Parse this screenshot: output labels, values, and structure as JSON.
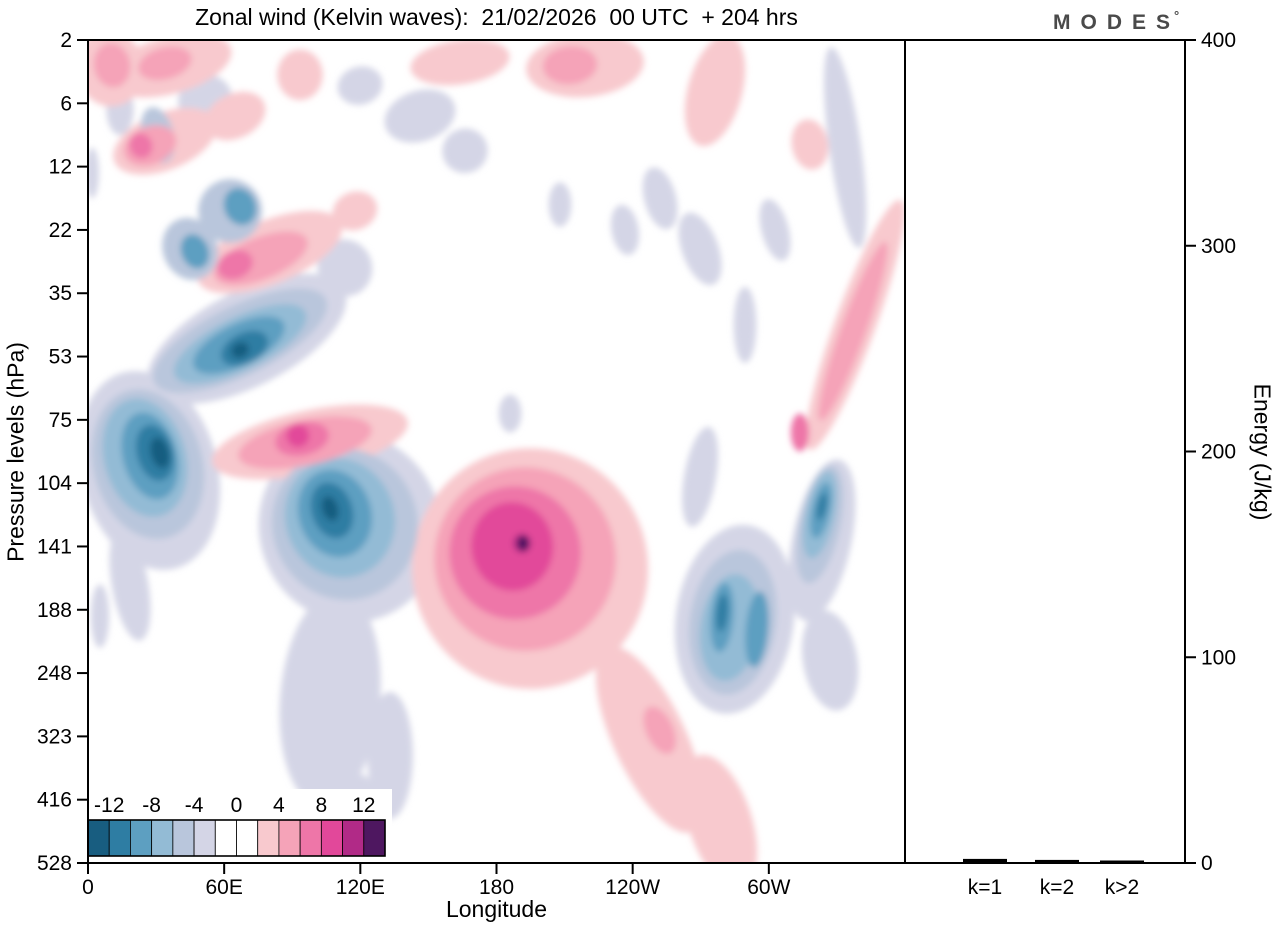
{
  "header": {
    "title": "Zonal wind (Kelvin waves):  21/02/2026  00 UTC  + 204 hrs",
    "logo_text": "MODES",
    "logo_degree": "°"
  },
  "chart_data": [
    {
      "type": "heatmap",
      "subtype": "filled-contour",
      "title": "Zonal wind (Kelvin waves):  21/02/2026  00 UTC  + 204 hrs",
      "xlabel": "Longitude",
      "ylabel": "Pressure levels (hPa)",
      "x_range": [
        0,
        360
      ],
      "x_ticks": {
        "lons": [
          0,
          60,
          120,
          180,
          240,
          300
        ],
        "labels": [
          "0",
          "60E",
          "120E",
          "180",
          "120W",
          "60W"
        ]
      },
      "y_ticks": [
        "2",
        "6",
        "12",
        "22",
        "35",
        "53",
        "75",
        "104",
        "141",
        "188",
        "248",
        "323",
        "416",
        "528"
      ],
      "grid": false,
      "colorbar": {
        "labels": [
          "-12",
          "-8",
          "-4",
          "0",
          "4",
          "8",
          "12"
        ],
        "levels_min": -14,
        "levels_max": 14,
        "levels_step": 2,
        "colors": [
          "#185d80",
          "#2e7da3",
          "#5d9fc1",
          "#93bbd5",
          "#b9c6dc",
          "#d4d5e6",
          "#ffffff",
          "#ffffff",
          "#f8c9ce",
          "#f5a3b8",
          "#ee76a8",
          "#e2489a",
          "#b12a87",
          "#4e1760"
        ]
      },
      "features_format": "[lon_deg, level_index(0=2hPa..13=528hPa), rx_deg, ry_levels, rotation_deg, color_index]",
      "features": [
        [
          51.6,
          0.95,
          12,
          0.4,
          -20,
          5
        ],
        [
          14.1,
          1.1,
          6,
          0.4,
          0,
          5
        ],
        [
          1.8,
          2.1,
          3,
          0.4,
          0,
          5
        ],
        [
          146.3,
          1.2,
          16,
          0.4,
          -18,
          5
        ],
        [
          166.1,
          1.75,
          10,
          0.35,
          -20,
          5
        ],
        [
          119.9,
          0.72,
          10,
          0.3,
          -15,
          5
        ],
        [
          208,
          2.6,
          5,
          0.35,
          0,
          5
        ],
        [
          236.6,
          3,
          6,
          0.4,
          -10,
          5
        ],
        [
          252.1,
          2.5,
          7,
          0.5,
          -15,
          5
        ],
        [
          269.7,
          3.3,
          8,
          0.6,
          -20,
          5
        ],
        [
          302.7,
          3,
          6,
          0.5,
          -15,
          5
        ],
        [
          333.6,
          1.7,
          7,
          1.6,
          -8,
          5
        ],
        [
          289.5,
          4.5,
          5,
          0.6,
          0,
          5
        ],
        [
          70,
          4.72,
          48,
          0.75,
          -27,
          5
        ],
        [
          113.2,
          3.6,
          12,
          0.45,
          -20,
          5
        ],
        [
          27,
          6.8,
          30,
          1.6,
          -15,
          5
        ],
        [
          18.5,
          8.6,
          8,
          0.9,
          -10,
          5
        ],
        [
          115.4,
          7.7,
          40,
          1.5,
          -18,
          5
        ],
        [
          106.7,
          10.4,
          22,
          1.7,
          5,
          5
        ],
        [
          133.1,
          11.3,
          10,
          1,
          0,
          5
        ],
        [
          119.9,
          12.2,
          8,
          0.6,
          0,
          5
        ],
        [
          5.3,
          9.1,
          4,
          0.5,
          0,
          5
        ],
        [
          285,
          9.15,
          26,
          1.5,
          8,
          5
        ],
        [
          269.7,
          6.9,
          7,
          0.8,
          10,
          5
        ],
        [
          323.4,
          7.9,
          13,
          1.3,
          12,
          5
        ],
        [
          327,
          9.8,
          12,
          0.8,
          -10,
          5
        ],
        [
          186,
          5.9,
          5,
          0.3,
          0,
          5
        ],
        [
          9.7,
          0.45,
          15,
          0.6,
          -10,
          8
        ],
        [
          36,
          0.4,
          28,
          0.45,
          -15,
          8
        ],
        [
          64.8,
          1.2,
          14,
          0.35,
          -25,
          8
        ],
        [
          93.4,
          0.55,
          10,
          0.4,
          0,
          8
        ],
        [
          163.9,
          0.35,
          22,
          0.35,
          -8,
          8
        ],
        [
          219,
          0.4,
          26,
          0.5,
          -5,
          8
        ],
        [
          276.3,
          0.8,
          12,
          0.9,
          15,
          8
        ],
        [
          318.1,
          1.65,
          8,
          0.4,
          -10,
          8
        ],
        [
          33.9,
          1.6,
          24,
          0.45,
          -22,
          8
        ],
        [
          80,
          3.35,
          34,
          0.5,
          -22,
          8
        ],
        [
          117.6,
          2.7,
          10,
          0.3,
          -20,
          8
        ],
        [
          97.8,
          6.35,
          44,
          0.5,
          -12,
          8
        ],
        [
          194.8,
          8.35,
          52,
          1.9,
          -5,
          8
        ],
        [
          247.6,
          11.05,
          16,
          1.6,
          -25,
          8
        ],
        [
          278.5,
          12.35,
          14,
          1.1,
          -18,
          8
        ],
        [
          338,
          4.5,
          9,
          2.1,
          20,
          8
        ],
        [
          30.8,
          1.5,
          7,
          0.45,
          -15,
          4
        ],
        [
          62.6,
          2.7,
          14,
          0.5,
          -22,
          4
        ],
        [
          45,
          3.3,
          12,
          0.5,
          -22,
          4
        ],
        [
          67,
          4.75,
          42,
          0.55,
          -26,
          4
        ],
        [
          26.4,
          6.7,
          24,
          1.2,
          -15,
          4
        ],
        [
          113.2,
          7.65,
          32,
          1.2,
          -18,
          4
        ],
        [
          284.2,
          9.2,
          19,
          1.15,
          8,
          4
        ],
        [
          322.5,
          7.65,
          9,
          0.95,
          12,
          4
        ],
        [
          67,
          4.8,
          32,
          0.42,
          -26,
          3
        ],
        [
          25.1,
          6.6,
          18,
          0.95,
          -15,
          3
        ],
        [
          111,
          7.55,
          24,
          0.95,
          -18,
          3
        ],
        [
          282.9,
          9.28,
          13,
          0.85,
          8,
          3
        ],
        [
          322.5,
          7.5,
          6.5,
          0.7,
          12,
          3
        ],
        [
          66.5,
          4.82,
          22,
          0.33,
          -26,
          2
        ],
        [
          27.3,
          6.57,
          12,
          0.7,
          -15,
          2
        ],
        [
          108.8,
          7.48,
          16,
          0.7,
          -18,
          2
        ],
        [
          67,
          2.63,
          7,
          0.3,
          -22,
          2
        ],
        [
          47.1,
          3.34,
          6,
          0.28,
          -22,
          2
        ],
        [
          279.4,
          9.12,
          5,
          0.55,
          5,
          2
        ],
        [
          294.8,
          9.31,
          5,
          0.6,
          5,
          2
        ],
        [
          323,
          7.43,
          4,
          0.45,
          12,
          2
        ],
        [
          69,
          4.87,
          11,
          0.24,
          -26,
          1
        ],
        [
          29.5,
          6.52,
          8,
          0.45,
          -15,
          1
        ],
        [
          107.5,
          7.43,
          9,
          0.45,
          -18,
          1
        ],
        [
          279.4,
          9.05,
          2.5,
          0.3,
          5,
          1
        ],
        [
          323.4,
          7.37,
          2,
          0.22,
          12,
          1
        ],
        [
          31.7,
          6.52,
          4,
          0.25,
          -15,
          0
        ],
        [
          106.7,
          7.4,
          3.5,
          0.2,
          -18,
          0
        ],
        [
          67,
          4.9,
          4,
          0.12,
          -26,
          0
        ],
        [
          10.6,
          0.4,
          8,
          0.35,
          -10,
          9
        ],
        [
          33.9,
          0.37,
          12,
          0.25,
          -15,
          9
        ],
        [
          212.4,
          0.4,
          12,
          0.3,
          -5,
          9
        ],
        [
          27.3,
          1.67,
          12,
          0.3,
          -22,
          9
        ],
        [
          76.2,
          3.45,
          22,
          0.33,
          -22,
          9
        ],
        [
          95.6,
          6.36,
          30,
          0.36,
          -12,
          9
        ],
        [
          192.6,
          8.2,
          40,
          1.45,
          -5,
          9
        ],
        [
          337.1,
          4.6,
          5.5,
          1.5,
          20,
          9
        ],
        [
          251.9,
          10.9,
          6,
          0.4,
          -25,
          9
        ],
        [
          23.3,
          1.67,
          5,
          0.2,
          -22,
          10
        ],
        [
          64.8,
          3.55,
          8,
          0.22,
          -22,
          10
        ],
        [
          94.3,
          6.3,
          12,
          0.26,
          -12,
          10
        ],
        [
          188.2,
          8.1,
          29,
          1.05,
          -5,
          10
        ],
        [
          313.7,
          6.2,
          4,
          0.3,
          0,
          10
        ],
        [
          92.5,
          6.25,
          5,
          0.18,
          -13,
          11
        ],
        [
          186.9,
          8,
          18,
          0.7,
          -5,
          11
        ],
        [
          191.3,
          7.95,
          4,
          0.15,
          0,
          12
        ],
        [
          191.7,
          7.95,
          2.5,
          0.12,
          0,
          13
        ]
      ]
    },
    {
      "type": "bar",
      "categories": [
        "k=1",
        "k=2",
        "k>2"
      ],
      "values": [
        2,
        1.5,
        1.2
      ],
      "ylabel": "Energy (J/kg)",
      "ylim": [
        0,
        400
      ],
      "y_ticks": [
        0,
        100,
        200,
        300,
        400
      ],
      "bar_color": "#000000"
    }
  ]
}
